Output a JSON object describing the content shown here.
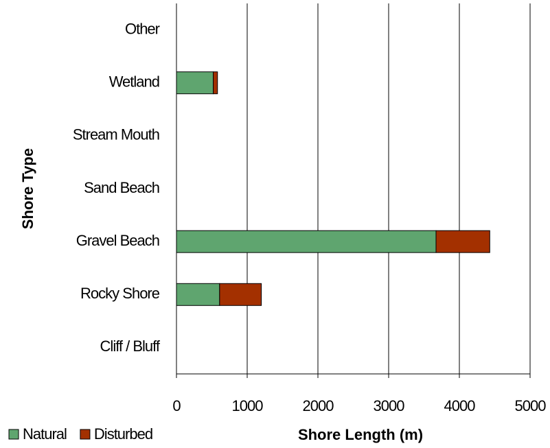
{
  "chart_data": {
    "type": "stacked_barh",
    "xlabel": "Shore Length (m)",
    "ylabel": "Shore Type",
    "categories": [
      "Other",
      "Wetland",
      "Stream Mouth",
      "Sand Beach",
      "Gravel Beach",
      "Rocky Shore",
      "Cliff / Bluff"
    ],
    "series": [
      {
        "name": "Natural",
        "color": "#5fa56f",
        "values": [
          0,
          520,
          0,
          0,
          3670,
          610,
          0
        ]
      },
      {
        "name": "Disturbed",
        "color": "#a33000",
        "values": [
          0,
          60,
          0,
          0,
          760,
          590,
          0
        ]
      }
    ],
    "xlim": [
      0,
      5000
    ],
    "xticks": [
      0,
      1000,
      2000,
      3000,
      4000,
      5000
    ],
    "grid": true,
    "legend": "bottom-left"
  }
}
